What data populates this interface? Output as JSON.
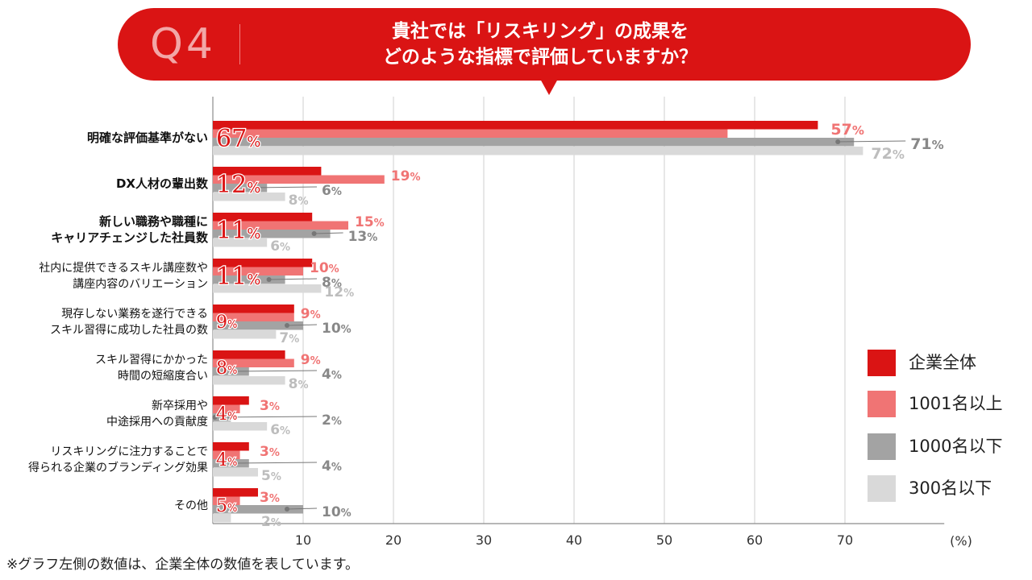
{
  "question": {
    "label": "Q4",
    "title_line1": "貴社では「リスキリング」の成果を",
    "title_line2": "どのような指標で評価していますか？"
  },
  "footnote": "※グラフ左側の数値は、企業全体の数値を表しています。",
  "chart_data": {
    "type": "bar",
    "orientation": "horizontal",
    "categories": [
      [
        "明確な評価基準がない"
      ],
      [
        "DX人材の輩出数"
      ],
      [
        "新しい職務や職種に",
        "キャリアチェンジした社員数"
      ],
      [
        "社内に提供できるスキル講座数や",
        "講座内容のバリエーション"
      ],
      [
        "現存しない業務を遂行できる",
        "スキル習得に成功した社員の数"
      ],
      [
        "スキル習得にかかった",
        "時間の短縮度合い"
      ],
      [
        "新卒採用や",
        "中途採用への貢献度"
      ],
      [
        "リスキリングに注力することで",
        "得られる企業のブランディング効果"
      ],
      [
        "その他"
      ]
    ],
    "category_bold": [
      true,
      true,
      true,
      false,
      false,
      false,
      false,
      false,
      false
    ],
    "series": [
      {
        "name": "企業全体",
        "color": "#da1414",
        "values": [
          67,
          12,
          11,
          11,
          9,
          8,
          4,
          4,
          5
        ]
      },
      {
        "name": "1001名以上",
        "color": "#f07474",
        "values": [
          57,
          19,
          15,
          10,
          9,
          9,
          3,
          3,
          3
        ]
      },
      {
        "name": "1000名以下",
        "color": "#a3a3a3",
        "values": [
          71,
          6,
          13,
          8,
          10,
          4,
          2,
          4,
          10
        ]
      },
      {
        "name": "300名以下",
        "color": "#d9d9d9",
        "values": [
          72,
          8,
          6,
          12,
          7,
          8,
          6,
          5,
          2
        ]
      }
    ],
    "x_ticks": [
      10,
      20,
      30,
      40,
      50,
      60,
      70
    ],
    "x_unit": "(%)",
    "xlim": [
      0,
      81
    ],
    "percent_sign": "%",
    "grid": true,
    "legend_position": "right"
  }
}
